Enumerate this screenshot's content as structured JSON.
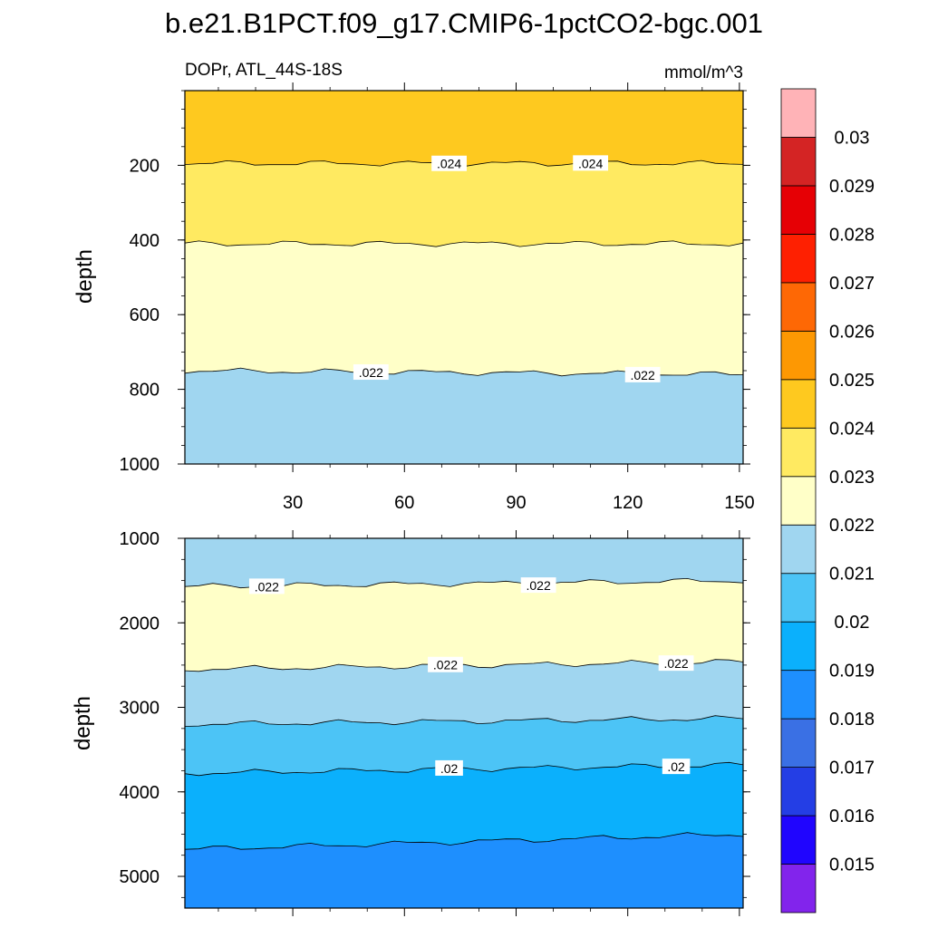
{
  "chart_data": {
    "type": "contour",
    "title": "b.e21.B1PCT.f09_g17.CMIP6-1pctCO2-bgc.001",
    "left_string": "DOPr, ATL_44S-18S",
    "right_string": "mmol/m^3",
    "xticks": [
      "30",
      "60",
      "90",
      "120",
      "150"
    ],
    "xtick_values": [
      30,
      60,
      90,
      120,
      150
    ],
    "xlim": [
      1,
      151
    ],
    "panels": [
      {
        "name": "upper",
        "ylabel": "depth",
        "ylim": [
          0,
          1000
        ],
        "yticks": [
          "200",
          "400",
          "600",
          "800",
          "1000"
        ],
        "ytick_values": [
          200,
          400,
          600,
          800,
          1000
        ],
        "bands": [
          {
            "color": "#fec91f",
            "top": [
              0,
              0
            ],
            "bottom": [
              195,
              195
            ]
          },
          {
            "color": "#ffea61",
            "top": [
              195,
              195
            ],
            "bottom": [
              410,
              410
            ]
          },
          {
            "color": "#ffffc8",
            "top": [
              410,
              410
            ],
            "bottom": [
              750,
              760
            ]
          },
          {
            "color": "#a0d6f0",
            "top": [
              750,
              760
            ],
            "bottom": [
              1000,
              1000
            ]
          }
        ],
        "contours": [
          {
            "label": ".024",
            "depth": [
              195,
              195
            ],
            "label_x": [
              72,
              110
            ]
          },
          {
            "label": "",
            "depth": [
              410,
              410
            ],
            "label_x": []
          },
          {
            "label": ".022",
            "depth": [
              750,
              760
            ],
            "label_x": [
              51,
              124
            ]
          }
        ]
      },
      {
        "name": "lower",
        "ylabel": "depth",
        "ylim": [
          1000,
          5375
        ],
        "yticks": [
          "1000",
          "2000",
          "3000",
          "4000",
          "5000"
        ],
        "ytick_values": [
          1000,
          2000,
          3000,
          4000,
          5000
        ],
        "bands": [
          {
            "color": "#a0d6f0",
            "top": [
              1000,
              1000
            ],
            "bottom": [
              1570,
              1500
            ]
          },
          {
            "color": "#ffffc8",
            "top": [
              1570,
              1500
            ],
            "bottom": [
              2550,
              2460
            ]
          },
          {
            "color": "#a0d6f0",
            "top": [
              2550,
              2460
            ],
            "bottom": [
              3200,
              3130
            ]
          },
          {
            "color": "#4cc4f6",
            "top": [
              3200,
              3130
            ],
            "bottom": [
              3780,
              3680
            ]
          },
          {
            "color": "#0bb0fc",
            "top": [
              3780,
              3680
            ],
            "bottom": [
              4680,
              4500
            ]
          },
          {
            "color": "#1e8ffe",
            "top": [
              4680,
              4500
            ],
            "bottom": [
              5375,
              5375
            ]
          }
        ],
        "contours": [
          {
            "label": ".022",
            "depth": [
              1570,
              1500
            ],
            "label_x": [
              23,
              96
            ]
          },
          {
            "label": ".022",
            "depth": [
              2550,
              2460
            ],
            "label_x": [
              71,
              133
            ]
          },
          {
            "label": "",
            "depth": [
              3200,
              3130
            ],
            "label_x": []
          },
          {
            "label": ".02",
            "depth": [
              3780,
              3680
            ],
            "label_x": [
              72,
              133
            ]
          },
          {
            "label": "",
            "depth": [
              4680,
              4500
            ],
            "label_x": []
          }
        ]
      }
    ],
    "colorbar": {
      "levels": [
        "0.015",
        "0.016",
        "0.017",
        "0.018",
        "0.019",
        "0.02",
        "0.021",
        "0.022",
        "0.023",
        "0.024",
        "0.025",
        "0.026",
        "0.027",
        "0.028",
        "0.029",
        "0.03"
      ],
      "colors": [
        "#8224ec",
        "#2005fe",
        "#243ee5",
        "#3a70e4",
        "#1e8ffe",
        "#0bb0fc",
        "#4cc4f6",
        "#a0d6f0",
        "#ffffc8",
        "#ffea61",
        "#fec91f",
        "#fd9803",
        "#fe6805",
        "#fe2001",
        "#e60005",
        "#d42424",
        "#ffb3b7"
      ]
    }
  }
}
